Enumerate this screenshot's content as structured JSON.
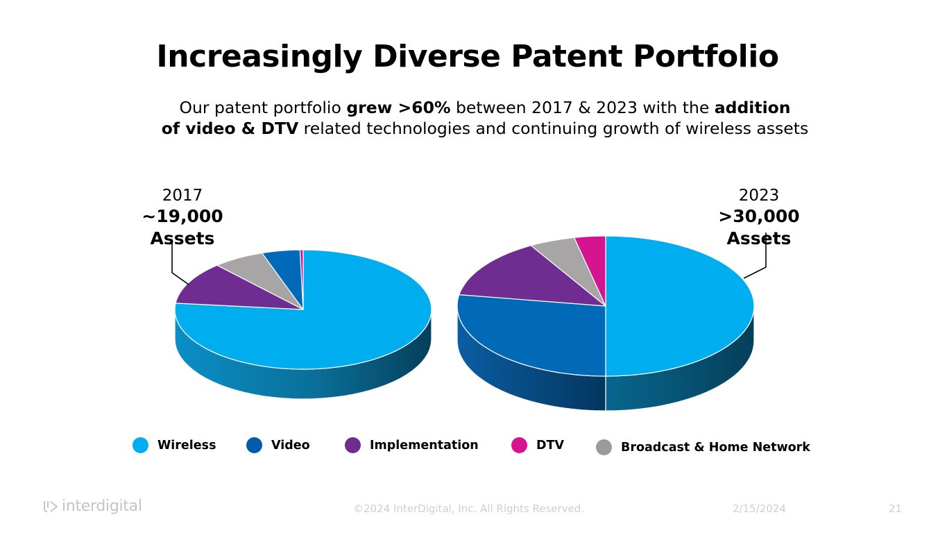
{
  "slide": {
    "title": "Increasingly Diverse Patent Portfolio",
    "subtitle": {
      "line1": [
        {
          "text": "Our patent portfolio ",
          "bold": false
        },
        {
          "text": "grew >60%",
          "bold": true
        },
        {
          "text": " between 2017 & 2023 with the ",
          "bold": false
        },
        {
          "text": "addition",
          "bold": true
        }
      ],
      "line2": [
        {
          "text": "of video & DTV",
          "bold": true
        },
        {
          "text": " related technologies and continuing growth of wireless assets",
          "bold": false
        }
      ]
    },
    "footer": {
      "logo_text": "interdigital",
      "copyright": "©2024 InterDigital, Inc. All Rights Reserved.",
      "date": "2/15/2024",
      "page_number": "21"
    }
  },
  "colors": {
    "Wireless": "#00aeef",
    "Video": "#0069b8",
    "Implementation": "#6f2c91",
    "DTV": "#d5158f",
    "Broadcast & Home Network": "#a7a5a6"
  },
  "legend": [
    {
      "label": "Wireless",
      "color": "#00aeef"
    },
    {
      "label": "Video",
      "color": "#005baa"
    },
    {
      "label": "Implementation",
      "color": "#6f2c91"
    },
    {
      "label": "DTV",
      "color": "#d5158f"
    },
    {
      "label": "Broadcast & Home Network",
      "color": "#9a9a9e"
    }
  ],
  "chart_data": [
    {
      "type": "pie",
      "title": "2017",
      "subtitle": "~19,000 Assets",
      "style": "3d",
      "categories": [
        "Wireless",
        "Implementation",
        "Broadcast & Home Network",
        "Video",
        "DTV"
      ],
      "values": [
        76.7,
        11.6,
        6.5,
        4.8,
        0.4
      ],
      "unit": "percent (estimated)"
    },
    {
      "type": "pie",
      "title": "2023",
      "subtitle": ">30,000 Assets",
      "style": "3d",
      "categories": [
        "Wireless",
        "Video",
        "Implementation",
        "Broadcast & Home Network",
        "DTV"
      ],
      "values": [
        50.0,
        27.6,
        14.0,
        5.0,
        3.4
      ],
      "unit": "percent (estimated)"
    }
  ]
}
